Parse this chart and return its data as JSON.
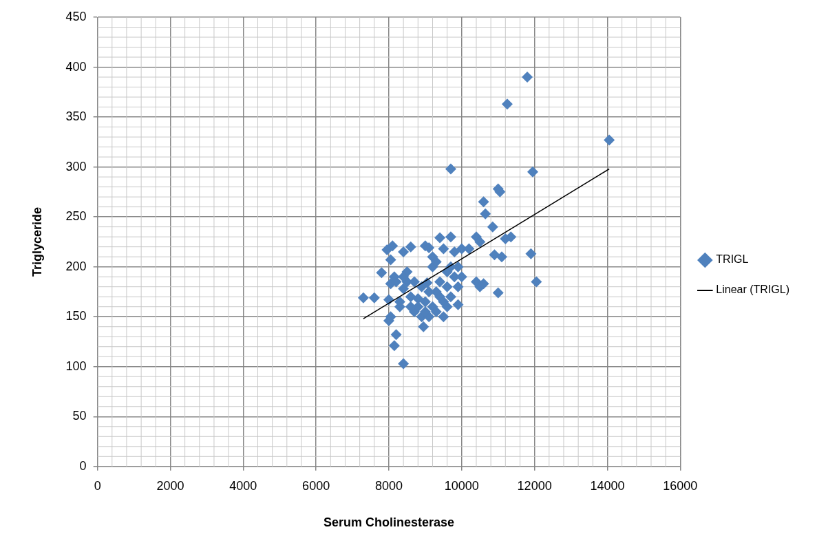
{
  "chart_data": {
    "type": "scatter",
    "xlabel": "Serum Cholinesterase",
    "ylabel": "Triglyceride",
    "xlim": [
      0,
      16000
    ],
    "xticks": [
      0,
      2000,
      4000,
      6000,
      8000,
      10000,
      12000,
      14000,
      16000
    ],
    "ylim": [
      0,
      450
    ],
    "yticks": [
      0,
      50,
      100,
      150,
      200,
      250,
      300,
      350,
      400,
      450
    ],
    "grid": true,
    "legend": "right",
    "marker": "diamond",
    "series": [
      {
        "name": "TRIGL",
        "color": "#4f81bd",
        "type": "scatter",
        "x": [
          7300,
          7600,
          7950,
          8100,
          8050,
          7800,
          8050,
          8150,
          8000,
          8050,
          8000,
          8200,
          8150,
          8400,
          8300,
          8400,
          8400,
          8500,
          8600,
          8500,
          8700,
          8600,
          8800,
          8700,
          8900,
          8950,
          9000,
          9050,
          9100,
          9200,
          9200,
          9300,
          9400,
          9500,
          9300,
          9400,
          9200,
          9100,
          9300,
          9500,
          9600,
          9700,
          9700,
          9800,
          9800,
          9900,
          9900,
          9700,
          9900,
          10000,
          10200,
          10400,
          10500,
          10400,
          10500,
          10600,
          10600,
          10650,
          10850,
          10900,
          11000,
          11050,
          11100,
          11000,
          11200,
          11350,
          11250,
          11800,
          11950,
          11900,
          12050,
          14050,
          8200,
          8300,
          8800,
          9000,
          9100,
          9400,
          9600,
          9600,
          8900,
          8400,
          9500,
          9700,
          10000,
          9000,
          8600
        ],
        "values": [
          169,
          169,
          217,
          221,
          207,
          194,
          183,
          190,
          167,
          150,
          146,
          132,
          121,
          103,
          160,
          178,
          215,
          195,
          220,
          185,
          185,
          170,
          168,
          155,
          150,
          140,
          221,
          184,
          219,
          210,
          200,
          205,
          229,
          218,
          175,
          170,
          160,
          150,
          155,
          165,
          180,
          230,
          298,
          215,
          190,
          200,
          180,
          170,
          162,
          218,
          218,
          230,
          225,
          185,
          180,
          183,
          265,
          253,
          240,
          212,
          278,
          275,
          210,
          174,
          228,
          230,
          363,
          390,
          295,
          213,
          185,
          327,
          185,
          165,
          160,
          165,
          175,
          185,
          195,
          160,
          180,
          190,
          150,
          200,
          190,
          155,
          160
        ]
      },
      {
        "name": "Linear (TRIGL)",
        "color": "#000000",
        "type": "line",
        "marker": "none",
        "x": [
          7300,
          14050
        ],
        "values": [
          148,
          298
        ]
      }
    ]
  }
}
